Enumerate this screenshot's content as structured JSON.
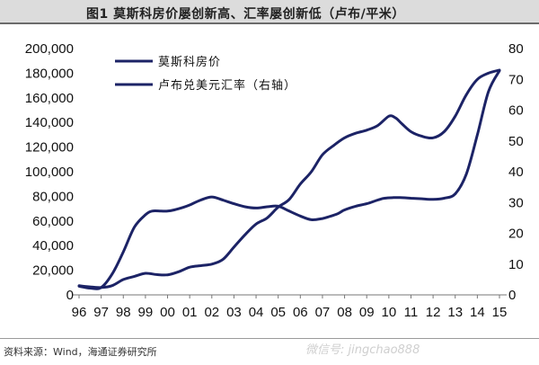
{
  "header": {
    "title": "图1 莫斯科房价屡创新高、汇率屡创新低（卢布/平米）"
  },
  "chart_data": {
    "type": "line",
    "categories": [
      "96",
      "97",
      "98",
      "99",
      "00",
      "01",
      "02",
      "03",
      "04",
      "05",
      "06",
      "07",
      "08",
      "09",
      "10",
      "11",
      "12",
      "13",
      "14",
      "15"
    ],
    "series": [
      {
        "name": "莫斯科房价",
        "axis": "left",
        "color": "#1c2366",
        "x": [
          96.0,
          96.5,
          97.0,
          97.5,
          98.0,
          98.5,
          99.0,
          99.3,
          99.7,
          100.0,
          100.3,
          100.7,
          101.0,
          101.5,
          102.0,
          102.5,
          103.0,
          103.5,
          104.0,
          104.5,
          105.0,
          105.5,
          106.0,
          106.5,
          107.0,
          107.3,
          107.7,
          108.0,
          108.5,
          109.0,
          109.5,
          109.8,
          110.2,
          110.5,
          111.0,
          111.5,
          112.0,
          112.5,
          113.0,
          113.5,
          114.0,
          114.5,
          115.0
        ],
        "values": [
          7000,
          5500,
          6000,
          17000,
          35000,
          55000,
          65000,
          68000,
          68000,
          68000,
          69000,
          71000,
          73000,
          77000,
          79500,
          77000,
          74000,
          71500,
          70500,
          71500,
          72000,
          68000,
          64000,
          61000,
          62000,
          63500,
          66000,
          69000,
          72000,
          74000,
          77000,
          78500,
          79000,
          79000,
          78500,
          78000,
          77500,
          78500,
          82000,
          98000,
          130000,
          165000,
          182000
        ]
      },
      {
        "name": "卢布兑美元汇率（右轴）",
        "axis": "right",
        "color": "#1c2366",
        "x": [
          96.0,
          96.5,
          97.0,
          97.5,
          98.0,
          98.5,
          99.0,
          99.5,
          100.0,
          100.5,
          101.0,
          101.5,
          102.0,
          102.5,
          103.0,
          103.5,
          104.0,
          104.5,
          105.0,
          105.5,
          106.0,
          106.5,
          107.0,
          107.5,
          108.0,
          108.5,
          109.0,
          109.5,
          110.0,
          110.3,
          110.6,
          111.0,
          111.5,
          112.0,
          112.5,
          113.0,
          113.5,
          114.0,
          114.5,
          115.0
        ],
        "values": [
          3.0,
          2.6,
          2.4,
          3.0,
          5.0,
          6.0,
          7.0,
          6.6,
          6.5,
          7.5,
          9.0,
          9.5,
          10.0,
          11.5,
          15.5,
          19.5,
          23.0,
          25.0,
          28.5,
          31.0,
          36.0,
          40.0,
          45.5,
          48.5,
          51.0,
          52.5,
          53.5,
          55.0,
          58.0,
          57.5,
          55.5,
          53.0,
          51.5,
          51.0,
          53.0,
          58.0,
          65.0,
          70.0,
          72.0,
          73.0
        ]
      }
    ],
    "y_left": {
      "ticks": [
        "0",
        "20,000",
        "40,000",
        "60,000",
        "80,000",
        "100,000",
        "120,000",
        "140,000",
        "160,000",
        "180,000",
        "200,000"
      ],
      "lim": [
        0,
        200000
      ]
    },
    "y_right": {
      "ticks": [
        "0",
        "10",
        "20",
        "30",
        "40",
        "50",
        "60",
        "70",
        "80"
      ],
      "lim": [
        0,
        80
      ]
    },
    "legend": {
      "placement": "top-left"
    },
    "grid": false
  },
  "footer": {
    "source": "资料来源：Wind，海通证券研究所",
    "watermark": "微信号: jingchao888"
  }
}
